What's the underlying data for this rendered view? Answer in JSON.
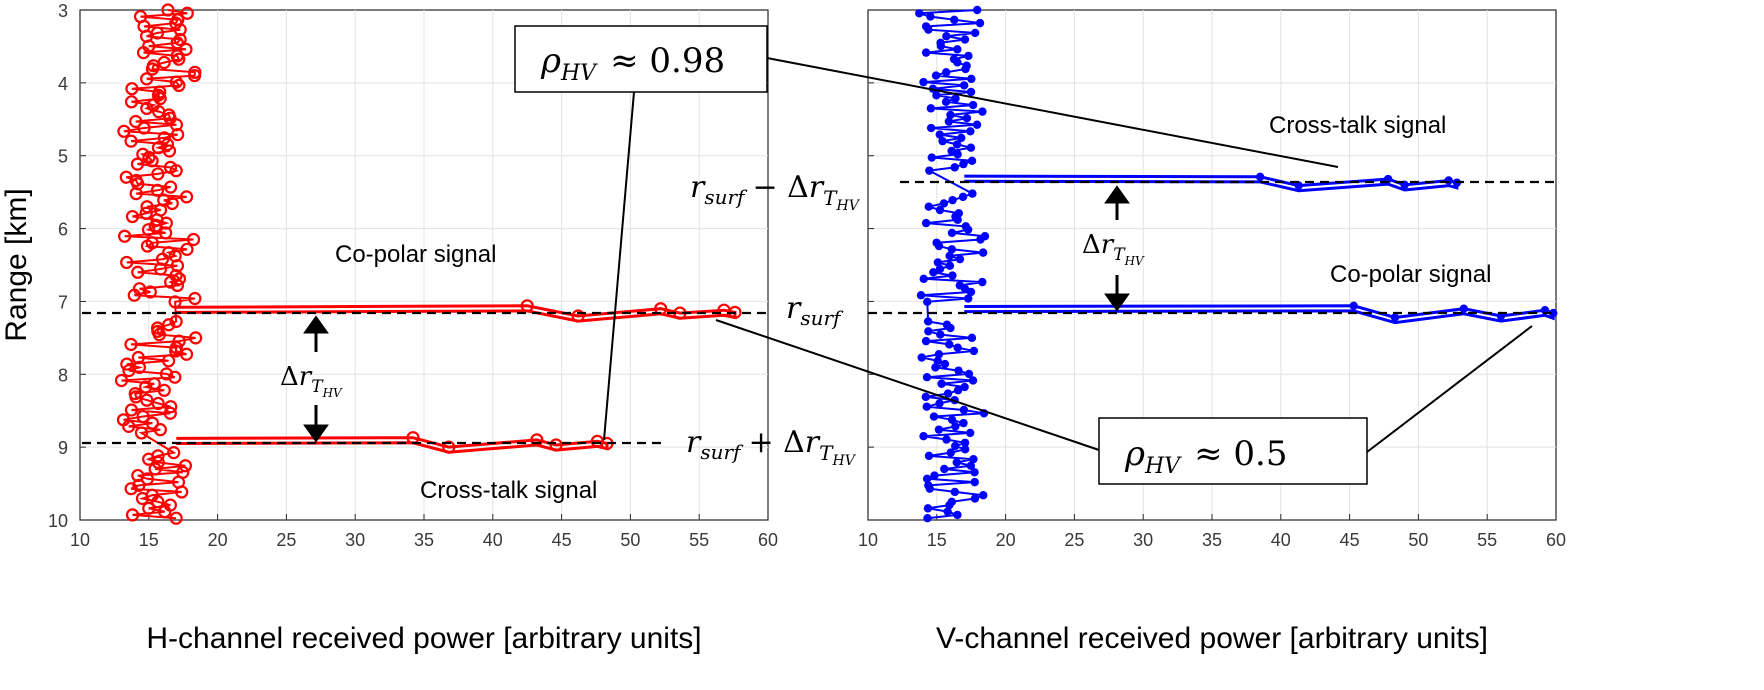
{
  "chart_data": [
    {
      "type": "line",
      "xlabel": "H-channel received power [arbitrary units]",
      "ylabel": "Range [km]",
      "xlim": [
        10,
        60
      ],
      "ylim": [
        3,
        10
      ],
      "y_reversed": true,
      "xticks": [
        "10",
        "15",
        "20",
        "25",
        "30",
        "35",
        "40",
        "45",
        "50",
        "55",
        "60"
      ],
      "yticks": [
        "3",
        "4",
        "5",
        "6",
        "7",
        "8",
        "9",
        "10"
      ],
      "grid": true,
      "marker": "circle",
      "color": "#ff0000",
      "noise_band": {
        "x_range": [
          13,
          18.5
        ],
        "y_range": [
          3,
          10
        ]
      },
      "peaks": [
        {
          "name": "Co-polar signal",
          "range_km": 7.14,
          "x": [
            17,
            42.5,
            46.2,
            52.2,
            53.6,
            56.8,
            57.6
          ],
          "y": [
            7.08,
            7.06,
            7.2,
            7.1,
            7.16,
            7.12,
            7.15
          ]
        },
        {
          "name": "Cross-talk signal",
          "range_km": 8.95,
          "x": [
            17,
            34.2,
            36.8,
            43.2,
            44.6,
            47.6,
            48.3
          ],
          "y": [
            8.88,
            8.87,
            9.0,
            8.9,
            8.97,
            8.92,
            8.95
          ]
        }
      ],
      "reference_lines": [
        {
          "y": 7.14,
          "label": "r_surf"
        },
        {
          "y": 8.95,
          "label": "r_surf + Δr_T_HV"
        }
      ],
      "annotations": [
        "Co-polar signal",
        "Cross-talk signal",
        "Δr_T_HV",
        "ρ_HV ≈ 0.98"
      ]
    },
    {
      "type": "line",
      "xlabel": "V-channel received power [arbitrary units]",
      "ylabel": "",
      "xlim": [
        10,
        60
      ],
      "ylim": [
        3,
        10
      ],
      "y_reversed": true,
      "xticks": [
        "10",
        "15",
        "20",
        "25",
        "30",
        "35",
        "40",
        "45",
        "50",
        "55",
        "60"
      ],
      "yticks": [],
      "grid": true,
      "marker": "asterisk",
      "color": "#0000ff",
      "noise_band": {
        "x_range": [
          13.5,
          18.5
        ],
        "y_range": [
          3,
          10
        ]
      },
      "peaks": [
        {
          "name": "Cross-talk signal",
          "range_km": 5.36,
          "x": [
            17,
            38.5,
            41.3,
            47.8,
            49.0,
            52.2,
            52.8
          ],
          "y": [
            5.28,
            5.29,
            5.41,
            5.32,
            5.4,
            5.34,
            5.37
          ]
        },
        {
          "name": "Co-polar signal",
          "range_km": 7.14,
          "x": [
            17,
            45.3,
            48.3,
            53.3,
            56.0,
            59.2,
            59.8
          ],
          "y": [
            7.07,
            7.06,
            7.22,
            7.1,
            7.2,
            7.12,
            7.16
          ]
        }
      ],
      "reference_lines": [
        {
          "y": 5.36,
          "label": "r_surf − Δr_T_HV"
        },
        {
          "y": 7.14,
          "label": "r_surf"
        }
      ],
      "annotations": [
        "Cross-talk signal",
        "Co-polar signal",
        "Δr_T_HV",
        "ρ_HV ≈ 0.5"
      ]
    }
  ],
  "text": {
    "rho1": {
      "sym": "ρ",
      "sub": "HV",
      "rel": "≈ 0.98"
    },
    "rho2": {
      "sym": "ρ",
      "sub": "HV",
      "rel": "≈ 0.5"
    },
    "rsurf": {
      "r": "r",
      "sub": "surf"
    },
    "rsurf_plus": {
      "r": "r",
      "sub": "surf",
      "op": "+ Δ",
      "r2": "r",
      "sub2": "T",
      "sub3": "HV"
    },
    "rsurf_minus": {
      "r": "r",
      "sub": "surf",
      "op": "− Δ",
      "r2": "r",
      "sub2": "T",
      "sub3": "HV"
    },
    "delta": {
      "d": "Δ",
      "r": "r",
      "sub2": "T",
      "sub3": "HV"
    },
    "left_copolar": "Co-polar signal",
    "left_crosstalk": "Cross-talk signal",
    "right_crosstalk": "Cross-talk signal",
    "right_copolar": "Co-polar signal"
  }
}
